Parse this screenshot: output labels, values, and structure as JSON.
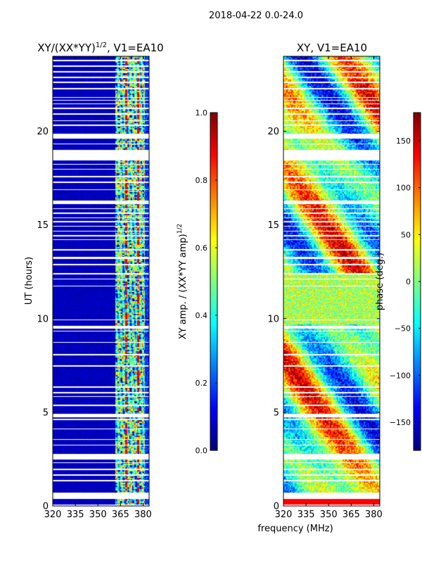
{
  "suptitle": "2018-04-22 0.0-24.0",
  "xlabel_shared": "frequency (MHz)",
  "colors": {
    "jet": [
      "#00007f",
      "#0000ff",
      "#007fff",
      "#00ffff",
      "#7fff7f",
      "#ffff00",
      "#ff7f00",
      "#ff0000",
      "#7f0000"
    ],
    "background": "#ffffff"
  },
  "chart_data": [
    {
      "type": "heatmap",
      "title_main": "XY/(XX*YY)",
      "title_exp": "1/2",
      "title_tail": ", V1=EA10",
      "xlabel": "",
      "ylabel": "UT (hours)",
      "xlim": [
        320,
        384
      ],
      "ylim": [
        0,
        24
      ],
      "x_ticks": [
        320,
        335,
        350,
        365,
        380
      ],
      "y_ticks": [
        0,
        5,
        10,
        15,
        20
      ],
      "x_tick_labels": [
        "320",
        "335",
        "350",
        "365",
        "380"
      ],
      "y_tick_labels": [
        "0",
        "5",
        "10",
        "15",
        "20"
      ],
      "pattern": "amplitude",
      "colorbar": {
        "label_main": "XY amp. / (XX*YY amp)",
        "label_exp": "1/2",
        "vmin": 0.0,
        "vmax": 1.0,
        "ticks": [
          0.0,
          0.2,
          0.4,
          0.6,
          0.8,
          1.0
        ],
        "tick_labels": [
          "0.0",
          "0.2",
          "0.4",
          "0.6",
          "0.8",
          "1.0"
        ]
      }
    },
    {
      "type": "heatmap",
      "title_main": "XY, V1=EA10",
      "xlabel": "frequency (MHz)",
      "ylabel": "",
      "xlim": [
        320,
        384
      ],
      "ylim": [
        0,
        24
      ],
      "x_ticks": [
        320,
        335,
        350,
        365,
        380
      ],
      "y_ticks": [
        0,
        5,
        10,
        15,
        20
      ],
      "x_tick_labels": [
        "320",
        "335",
        "350",
        "365",
        "380"
      ],
      "y_tick_labels": [
        "0",
        "5",
        "10",
        "15",
        "20"
      ],
      "pattern": "phase",
      "colorbar": {
        "label_main": "phase (deg.)",
        "vmin": -180,
        "vmax": 180,
        "ticks": [
          -150,
          -100,
          -50,
          0,
          50,
          100,
          150
        ],
        "tick_labels": [
          "−150",
          "−100",
          "−50",
          "0",
          "50",
          "100",
          "150"
        ]
      }
    }
  ],
  "flagged_time_ranges_hours": [
    [
      0.0,
      0.08
    ],
    [
      0.38,
      0.7
    ],
    [
      1.32,
      1.38
    ],
    [
      1.62,
      1.68
    ],
    [
      1.92,
      1.98
    ],
    [
      2.28,
      2.34
    ],
    [
      2.48,
      2.78
    ],
    [
      3.22,
      3.27
    ],
    [
      3.52,
      3.57
    ],
    [
      4.1,
      4.15
    ],
    [
      4.6,
      4.66
    ],
    [
      4.75,
      4.92
    ],
    [
      5.35,
      5.4
    ],
    [
      5.82,
      5.87
    ],
    [
      6.02,
      6.07
    ],
    [
      6.32,
      6.37
    ],
    [
      7.45,
      7.5
    ],
    [
      8.05,
      8.1
    ],
    [
      8.7,
      8.75
    ],
    [
      9.3,
      9.35
    ],
    [
      9.48,
      9.6
    ],
    [
      9.9,
      9.96
    ],
    [
      11.7,
      11.75
    ],
    [
      12.08,
      12.14
    ],
    [
      12.35,
      12.45
    ],
    [
      12.85,
      12.92
    ],
    [
      13.2,
      13.3
    ],
    [
      13.65,
      13.7
    ],
    [
      14.2,
      14.25
    ],
    [
      14.4,
      14.45
    ],
    [
      14.65,
      14.7
    ],
    [
      14.9,
      14.95
    ],
    [
      15.15,
      15.2
    ],
    [
      15.35,
      15.4
    ],
    [
      15.6,
      15.65
    ],
    [
      15.85,
      15.9
    ],
    [
      16.12,
      16.3
    ],
    [
      16.85,
      16.9
    ],
    [
      17.25,
      17.3
    ],
    [
      17.55,
      17.6
    ],
    [
      17.95,
      18.0
    ],
    [
      18.2,
      18.25
    ],
    [
      18.45,
      19.0
    ],
    [
      19.3,
      19.35
    ],
    [
      19.6,
      19.85
    ],
    [
      20.3,
      20.35
    ],
    [
      20.55,
      20.6
    ],
    [
      20.9,
      20.95
    ],
    [
      21.2,
      21.25
    ],
    [
      21.45,
      21.5
    ],
    [
      21.62,
      21.68
    ],
    [
      21.78,
      21.84
    ],
    [
      22.25,
      22.3
    ],
    [
      22.58,
      22.63
    ],
    [
      22.85,
      22.9
    ],
    [
      23.15,
      23.2
    ],
    [
      23.45,
      23.5
    ],
    [
      23.75,
      23.8
    ]
  ]
}
